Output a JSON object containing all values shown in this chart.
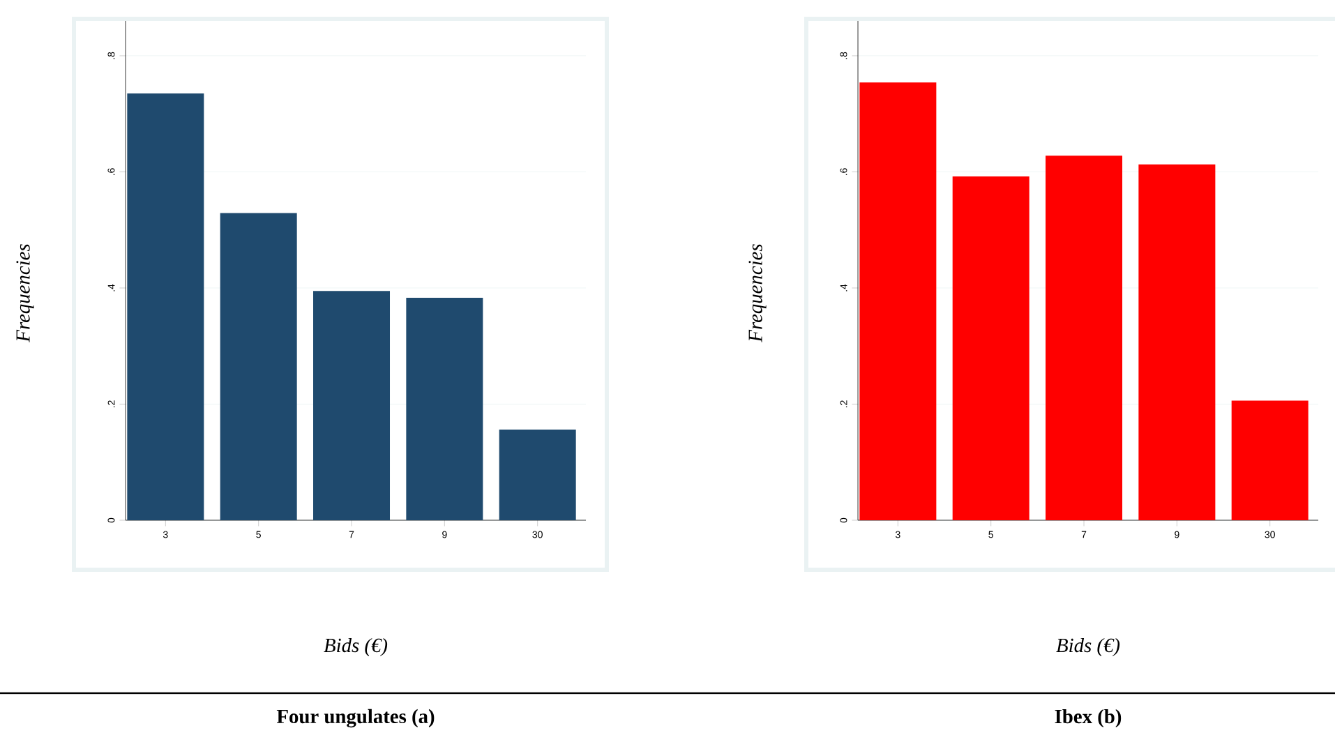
{
  "chart_data": [
    {
      "type": "bar",
      "title": "**Four ungulates  (a)**",
      "xlabel": "*Bids (€)*",
      "ylabel": "*Frequencies*",
      "categories": [
        "3",
        "5",
        "7",
        "9",
        "30"
      ],
      "values": [
        0.735,
        0.529,
        0.395,
        0.383,
        0.156
      ],
      "color": "#1f4a6e",
      "ylim": [
        0,
        0.86
      ],
      "yticks": [
        0,
        {
          "value": 0.2,
          "label": ".2"
        },
        {
          "value": 0.4,
          "label": ".4"
        },
        {
          "value": 0.6,
          "label": ".6"
        },
        {
          "value": 0.8,
          "label": ".8"
        }
      ],
      "grid": "y"
    },
    {
      "type": "bar",
      "title": "**Ibex (b)**",
      "xlabel": "*Bids (€)*",
      "ylabel": "*Frequencies*",
      "categories": [
        "3",
        "5",
        "7",
        "9",
        "30"
      ],
      "values": [
        0.754,
        0.592,
        0.628,
        0.613,
        0.206
      ],
      "color": "#ff0000",
      "ylim": [
        0,
        0.86
      ],
      "yticks": [
        0,
        {
          "value": 0.2,
          "label": ".2"
        },
        {
          "value": 0.4,
          "label": ".4"
        },
        {
          "value": 0.6,
          "label": ".6"
        },
        {
          "value": 0.8,
          "label": ".8"
        }
      ],
      "grid": "y"
    }
  ]
}
